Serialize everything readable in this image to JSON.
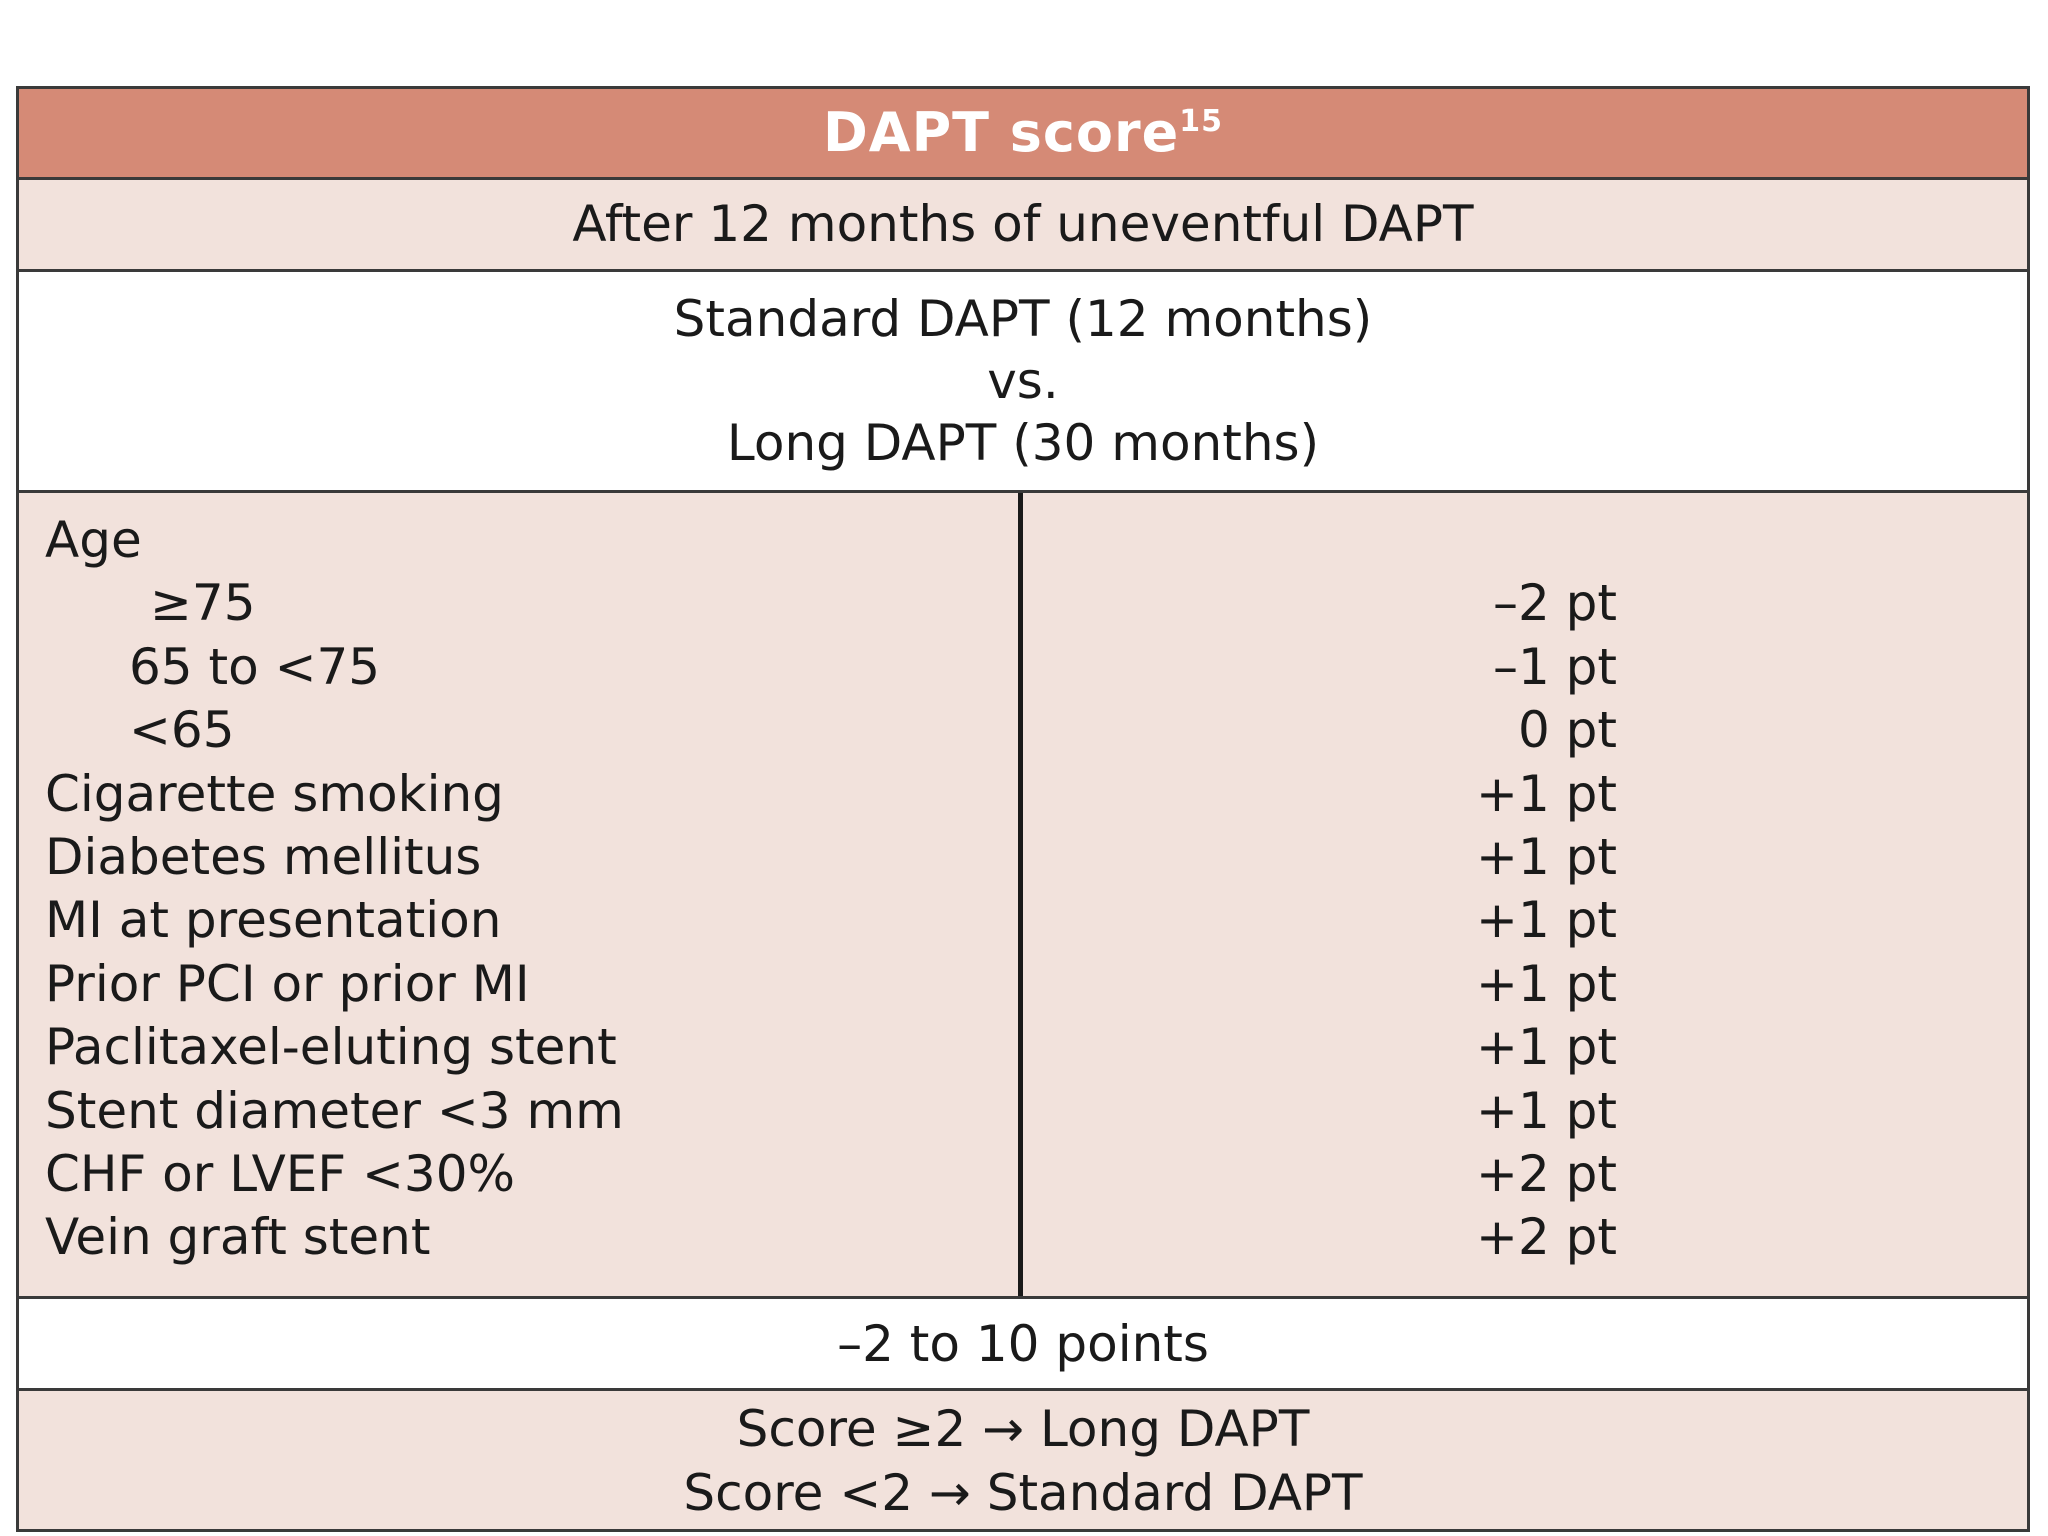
{
  "table": {
    "title": "DAPT score",
    "title_ref": "15",
    "subtitle": "After 12 months of uneventful DAPT",
    "comparison": {
      "line1": "Standard DAPT (12 months)",
      "line2": "vs.",
      "line3": "Long DAPT (30 months)"
    },
    "rows": [
      {
        "label": "Age",
        "points": ""
      },
      {
        "label": "≥75",
        "points": "–2 pt"
      },
      {
        "label": "65 to <75",
        "points": "–1 pt"
      },
      {
        "label": "<65",
        "points": "0 pt"
      },
      {
        "label": "Cigarette smoking",
        "points": "+1 pt"
      },
      {
        "label": "Diabetes mellitus",
        "points": "+1 pt"
      },
      {
        "label": "MI at presentation",
        "points": "+1 pt"
      },
      {
        "label": "Prior PCI or prior MI",
        "points": "+1 pt"
      },
      {
        "label": "Paclitaxel-eluting stent",
        "points": "+1 pt"
      },
      {
        "label": "Stent diameter <3 mm",
        "points": "+1 pt"
      },
      {
        "label": "CHF or LVEF <30%",
        "points": "+2 pt"
      },
      {
        "label": "Vein graft stent",
        "points": "+2 pt"
      }
    ],
    "range": "–2 to 10 points",
    "rules": {
      "line1": "Score ≥2 → Long DAPT",
      "line2": "Score <2 → Standard DAPT"
    },
    "colors": {
      "header": "#d58a76",
      "shaded": "#f2e2dc",
      "plain": "#ffffff",
      "border": "#3a3a3a"
    }
  }
}
